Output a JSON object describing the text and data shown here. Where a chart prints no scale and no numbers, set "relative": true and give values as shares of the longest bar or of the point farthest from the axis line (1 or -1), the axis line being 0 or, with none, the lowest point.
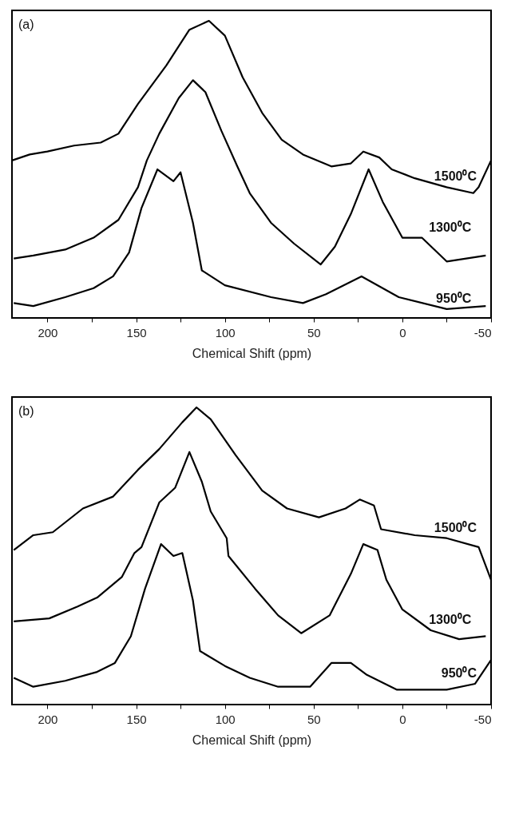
{
  "chart_data": [
    {
      "type": "line",
      "relative": true,
      "xlabel": "Chemical Shift (ppm)",
      "annotations": [
        "(a)"
      ],
      "xlim": [
        220,
        -50
      ],
      "xticks": [
        200,
        {
          "value": 175,
          "label": null
        },
        150,
        {
          "value": 125,
          "label": null
        },
        100,
        {
          "value": 75,
          "label": null
        },
        50,
        {
          "value": 25,
          "label": null
        },
        0,
        {
          "value": -25,
          "label": null
        },
        -50
      ],
      "series": [
        {
          "name": "1500⁰C",
          "color": "#000000",
          "x": [
            220,
            210,
            200,
            185,
            170,
            160,
            149,
            133,
            120,
            109,
            100,
            90,
            79,
            68,
            56,
            40,
            29,
            22,
            13,
            6,
            -7,
            -25,
            -40,
            -43,
            -50
          ],
          "values": [
            0.53,
            0.55,
            0.56,
            0.58,
            0.59,
            0.62,
            0.72,
            0.85,
            0.97,
            1.0,
            0.95,
            0.81,
            0.69,
            0.6,
            0.55,
            0.51,
            0.52,
            0.56,
            0.54,
            0.5,
            0.47,
            0.44,
            0.42,
            0.44,
            0.53
          ]
        },
        {
          "name": "1300⁰C",
          "color": "#000000",
          "x": [
            219,
            208,
            190,
            174,
            160,
            149,
            144,
            137,
            126,
            118,
            111,
            102,
            93,
            86,
            74,
            61,
            46,
            38,
            29,
            19,
            11,
            0,
            -11,
            -25,
            -47
          ],
          "values": [
            0.2,
            0.21,
            0.23,
            0.27,
            0.33,
            0.44,
            0.53,
            0.62,
            0.74,
            0.8,
            0.76,
            0.63,
            0.51,
            0.42,
            0.32,
            0.25,
            0.18,
            0.24,
            0.35,
            0.5,
            0.39,
            0.27,
            0.27,
            0.19,
            0.21
          ]
        },
        {
          "name": "950⁰C",
          "color": "#000000",
          "x": [
            219,
            208,
            190,
            174,
            163,
            154,
            147,
            138,
            129,
            125,
            118,
            113,
            100,
            74,
            56,
            43,
            23,
            2,
            -25,
            -47
          ],
          "values": [
            0.05,
            0.04,
            0.07,
            0.1,
            0.14,
            0.22,
            0.37,
            0.5,
            0.46,
            0.49,
            0.32,
            0.16,
            0.11,
            0.07,
            0.05,
            0.08,
            0.14,
            0.07,
            0.03,
            0.04
          ]
        }
      ]
    },
    {
      "type": "line",
      "relative": true,
      "xlabel": "Chemical Shift (ppm)",
      "annotations": [
        "(b)"
      ],
      "xlim": [
        220,
        -50
      ],
      "xticks": [
        200,
        {
          "value": 175,
          "label": null
        },
        150,
        {
          "value": 125,
          "label": null
        },
        100,
        {
          "value": 75,
          "label": null
        },
        50,
        {
          "value": 25,
          "label": null
        },
        0,
        {
          "value": -25,
          "label": null
        },
        -50
      ],
      "series": [
        {
          "name": "1500⁰C",
          "color": "#000000",
          "x": [
            219,
            208,
            197,
            180,
            163,
            149,
            137,
            124,
            116,
            108,
            94,
            79,
            65,
            47,
            32,
            24,
            16,
            12,
            -7,
            -25,
            -43,
            -50
          ],
          "values": [
            0.52,
            0.57,
            0.58,
            0.66,
            0.7,
            0.79,
            0.86,
            0.95,
            1.0,
            0.96,
            0.84,
            0.72,
            0.66,
            0.63,
            0.66,
            0.69,
            0.67,
            0.59,
            0.57,
            0.56,
            0.53,
            0.42
          ]
        },
        {
          "name": "1300⁰C",
          "color": "#000000",
          "x": [
            219,
            199,
            183,
            172,
            158,
            151,
            147,
            137,
            128,
            120,
            113,
            108,
            99,
            98,
            83,
            70,
            57,
            41,
            29,
            22,
            14,
            9,
            0,
            -16,
            -32,
            -47
          ],
          "values": [
            0.28,
            0.29,
            0.33,
            0.36,
            0.43,
            0.51,
            0.53,
            0.68,
            0.73,
            0.85,
            0.75,
            0.65,
            0.56,
            0.5,
            0.39,
            0.3,
            0.24,
            0.3,
            0.44,
            0.54,
            0.52,
            0.42,
            0.32,
            0.25,
            0.22,
            0.23
          ]
        },
        {
          "name": "950⁰C",
          "color": "#000000",
          "x": [
            219,
            208,
            190,
            172,
            162,
            153,
            145,
            136,
            129,
            124,
            118,
            114,
            100,
            86,
            70,
            52,
            40,
            29,
            20,
            3,
            -25,
            -41,
            -50
          ],
          "values": [
            0.09,
            0.06,
            0.08,
            0.11,
            0.14,
            0.23,
            0.39,
            0.54,
            0.5,
            0.51,
            0.35,
            0.18,
            0.13,
            0.09,
            0.06,
            0.06,
            0.14,
            0.14,
            0.1,
            0.05,
            0.05,
            0.07,
            0.15
          ]
        }
      ]
    }
  ]
}
